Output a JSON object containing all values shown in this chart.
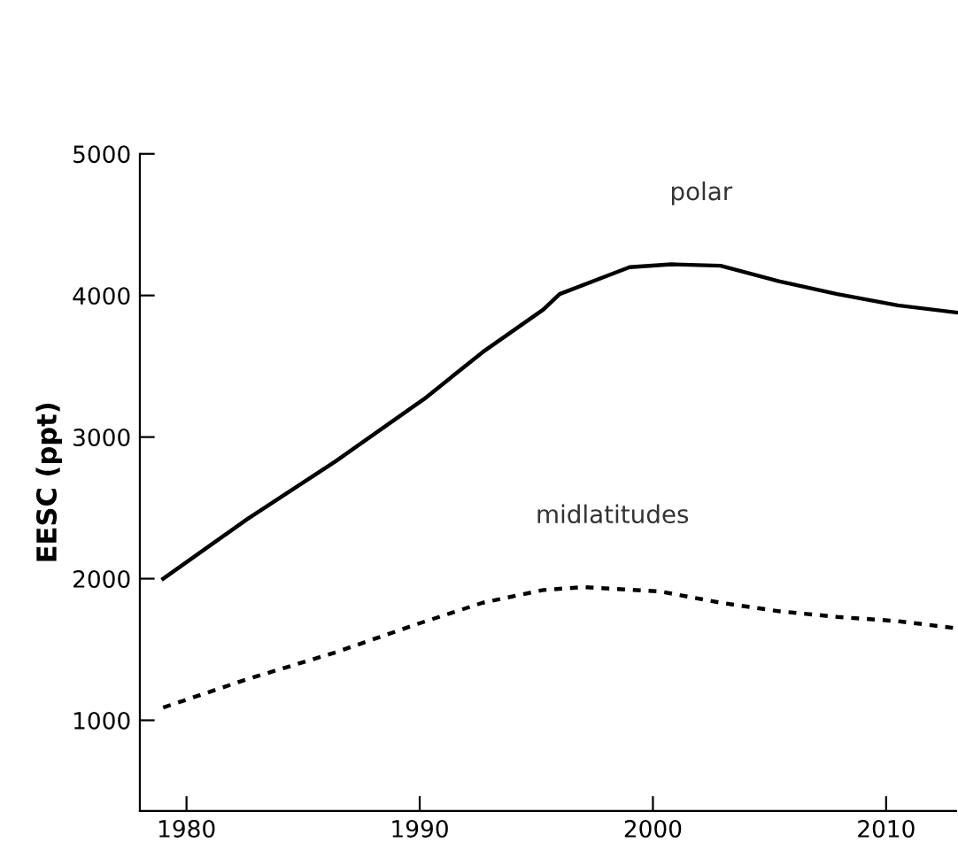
{
  "chart_data": {
    "type": "line",
    "ylabel": "EESC (ppt)",
    "xlim": [
      1978,
      2013
    ],
    "ylim": [
      360,
      5000
    ],
    "xticks": [
      1980,
      1990,
      2000,
      2010
    ],
    "yticks": [
      1000,
      2000,
      3000,
      4000,
      5000
    ],
    "grid": false,
    "legend": false,
    "series": [
      {
        "name": "polar",
        "color": "#000000",
        "line_style": "solid",
        "x": [
          1979,
          1982.6,
          1986.4,
          1990.2,
          1992.7,
          1995.3,
          1996,
          1999,
          2000.8,
          2002.9,
          2005.4,
          2007.9,
          2010.5,
          2013
        ],
        "values": [
          2000,
          2420,
          2830,
          3270,
          3600,
          3900,
          4010,
          4200,
          4220,
          4210,
          4100,
          4010,
          3930,
          3880
        ]
      },
      {
        "name": "midlatitudes",
        "color": "#000000",
        "line_style": "dotted",
        "x": [
          1979,
          1982.6,
          1986.4,
          1989.9,
          1992.7,
          1995.3,
          1997,
          2000.3,
          2002.9,
          2005.4,
          2007.9,
          2010.5,
          2013
        ],
        "values": [
          1090,
          1290,
          1480,
          1680,
          1830,
          1920,
          1940,
          1910,
          1830,
          1770,
          1730,
          1700,
          1650
        ]
      }
    ]
  }
}
